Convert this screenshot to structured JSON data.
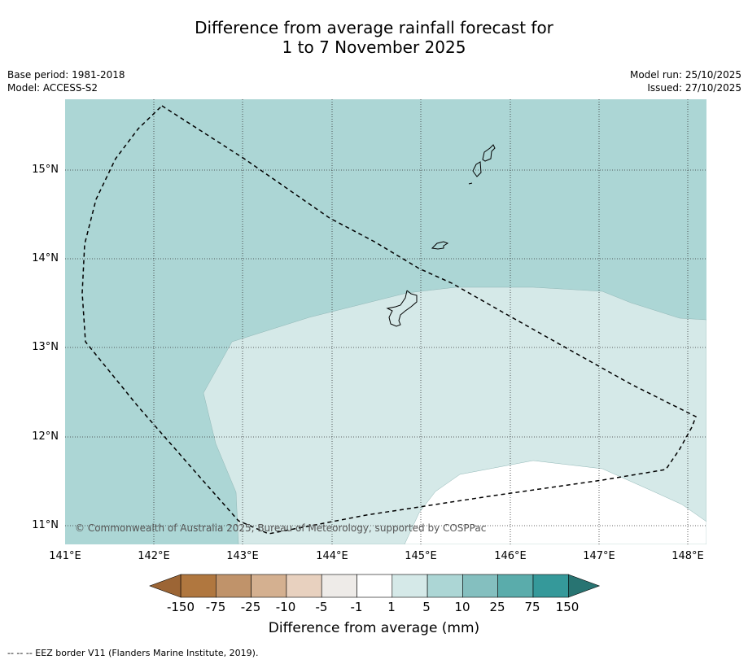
{
  "title": {
    "line1": "Difference from average rainfall forecast for",
    "line2": "1 to 7 November 2025"
  },
  "meta": {
    "base_period": "Base period: 1981-2018",
    "model": "Model: ACCESS-S2",
    "model_run": "Model run: 25/10/2025",
    "issued": "Issued: 27/10/2025"
  },
  "map": {
    "latitude_labels": [
      "15°N",
      "14°N",
      "13°N",
      "12°N",
      "11°N"
    ],
    "longitude_labels": [
      "141°E",
      "142°E",
      "143°E",
      "144°E",
      "145°E",
      "146°E",
      "147°E",
      "148°E"
    ],
    "copyright": "© Commonwealth of Australia 2025, Bureau of Meteorology, supported by COSPPac",
    "colors": {
      "zone_5_to_10": "#acd6d5",
      "zone_1_to_5": "#d5e9e8",
      "zone_minus1_to_1": "#ffffff",
      "coastline": "#000000",
      "eez_border": "#000000"
    }
  },
  "legend": {
    "title": "Difference from average (mm)",
    "ticks": [
      "-150",
      "-75",
      "-25",
      "-10",
      "-5",
      "-1",
      "1",
      "5",
      "10",
      "25",
      "75",
      "150"
    ],
    "colors": [
      "#9c6535",
      "#b0773f",
      "#c0936a",
      "#d4b090",
      "#e8d1bf",
      "#eeebe8",
      "#ffffff",
      "#d5e9e8",
      "#acd6d5",
      "#84bfbf",
      "#5aacab",
      "#35999a",
      "#287472"
    ]
  },
  "footer": {
    "eez_note": "--  --  -- EEZ border V11 (Flanders Marine Institute, 2019)."
  }
}
